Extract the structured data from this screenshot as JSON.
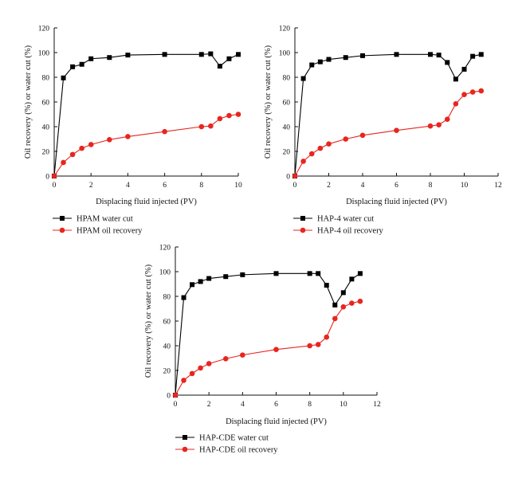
{
  "colors": {
    "water_cut": "#000000",
    "oil_recovery": "#e8251f",
    "axis": "#111111"
  },
  "chart_data": [
    {
      "type": "line",
      "xlabel": "Displacing fluid injected (PV)",
      "ylabel": "Oil recovery (%) or water cut (%)",
      "xlim": [
        0,
        10
      ],
      "ylim": [
        0,
        120
      ],
      "xticks": [
        0,
        2,
        4,
        6,
        8,
        10
      ],
      "yticks": [
        0,
        20,
        40,
        60,
        80,
        100,
        120
      ],
      "legend_position": "below",
      "series": [
        {
          "name": "HPAM water cut",
          "marker": "square",
          "color": "#000000",
          "x": [
            0,
            0.5,
            1,
            1.5,
            2,
            3,
            4,
            6,
            8,
            8.5,
            9,
            9.5,
            10
          ],
          "y": [
            0,
            79.5,
            88.5,
            90.5,
            95,
            96,
            98,
            98.5,
            98.5,
            99,
            89,
            95,
            98.5
          ]
        },
        {
          "name": "HPAM oil recovery",
          "marker": "circle",
          "color": "#e8251f",
          "x": [
            0,
            0.5,
            1,
            1.5,
            2,
            3,
            4,
            6,
            8,
            8.5,
            9,
            9.5,
            10
          ],
          "y": [
            0,
            11,
            17.5,
            22.5,
            25.5,
            29.5,
            32,
            36,
            40,
            40.5,
            46.5,
            49,
            50
          ]
        }
      ]
    },
    {
      "type": "line",
      "xlabel": "Displacing fluid injected (PV)",
      "ylabel": "Oil recovery (%) or water cut (%)",
      "xlim": [
        0,
        12
      ],
      "ylim": [
        0,
        120
      ],
      "xticks": [
        0,
        2,
        4,
        6,
        8,
        10,
        12
      ],
      "yticks": [
        0,
        20,
        40,
        60,
        80,
        100,
        120
      ],
      "legend_position": "below",
      "series": [
        {
          "name": "HAP-4 water cut",
          "marker": "square",
          "color": "#000000",
          "x": [
            0,
            0.5,
            1,
            1.5,
            2,
            3,
            4,
            6,
            8,
            8.5,
            9,
            9.5,
            10,
            10.5,
            11
          ],
          "y": [
            0,
            79,
            90,
            92.5,
            94.5,
            96,
            97.5,
            98.5,
            98.5,
            98,
            92,
            78.5,
            86.5,
            97,
            98.5
          ]
        },
        {
          "name": "HAP-4 oil recovery",
          "marker": "circle",
          "color": "#e8251f",
          "x": [
            0,
            0.5,
            1,
            1.5,
            2,
            3,
            4,
            6,
            8,
            8.5,
            9,
            9.5,
            10,
            10.5,
            11
          ],
          "y": [
            0,
            12,
            18,
            22.5,
            26,
            30,
            33,
            37,
            40.5,
            41.5,
            46,
            58.5,
            66,
            68,
            69
          ]
        }
      ]
    },
    {
      "type": "line",
      "xlabel": "Displacing fluid injected (PV)",
      "ylabel": "Oil recovery (%) or water cut (%)",
      "xlim": [
        0,
        12
      ],
      "ylim": [
        0,
        120
      ],
      "xticks": [
        0,
        2,
        4,
        6,
        8,
        10,
        12
      ],
      "yticks": [
        0,
        20,
        40,
        60,
        80,
        100,
        120
      ],
      "legend_position": "below",
      "series": [
        {
          "name": "HAP-CDE water cut",
          "marker": "square",
          "color": "#000000",
          "x": [
            0,
            0.5,
            1,
            1.5,
            2,
            3,
            4,
            6,
            8,
            8.5,
            9,
            9.5,
            10,
            10.5,
            11
          ],
          "y": [
            0,
            79,
            89.5,
            92,
            94.5,
            96,
            97.5,
            98.5,
            98.5,
            98.5,
            89,
            73,
            83,
            94,
            98.5
          ]
        },
        {
          "name": "HAP-CDE oil recovery",
          "marker": "circle",
          "color": "#e8251f",
          "x": [
            0,
            0.5,
            1,
            1.5,
            2,
            3,
            4,
            6,
            8,
            8.5,
            9,
            9.5,
            10,
            10.5,
            11
          ],
          "y": [
            0,
            12,
            17.5,
            22,
            25.5,
            29.5,
            32.5,
            37,
            40,
            41,
            47,
            62,
            71.5,
            74.5,
            76
          ]
        }
      ]
    }
  ]
}
